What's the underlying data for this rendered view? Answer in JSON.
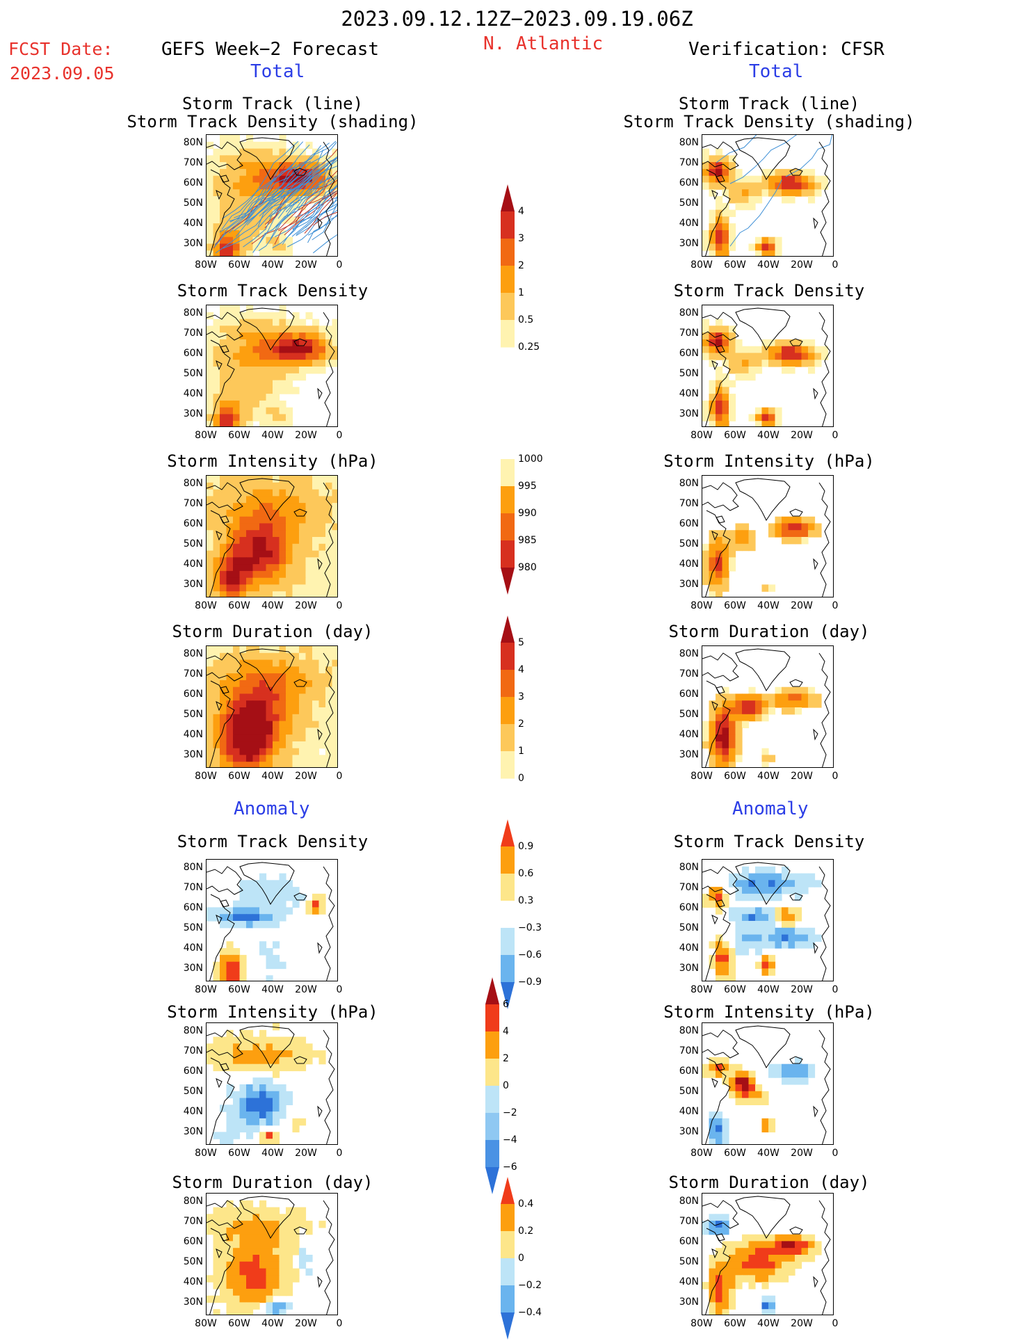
{
  "header": {
    "date_range": "2023.09.12.12Z−2023.09.19.06Z",
    "fcst_label": "FCST Date:",
    "fcst_date": "2023.09.05",
    "model": "GEFS Week−2 Forecast",
    "region": "N. Atlantic",
    "verification": "Verification: CFSR",
    "total_label": "Total",
    "anomaly_label": "Anomaly"
  },
  "axes": {
    "lat_ticks": [
      "80N",
      "70N",
      "60N",
      "50N",
      "40N",
      "30N"
    ],
    "lon_ticks": [
      "80W",
      "60W",
      "40W",
      "20W",
      "0"
    ]
  },
  "panels": {
    "track_title_1": "Storm Track (line)",
    "track_title_2": "Storm Track Density (shading)",
    "density": "Storm Track Density",
    "intensity": "Storm Intensity (hPa)",
    "duration": "Storm Duration (day)"
  },
  "colorbars": {
    "density_total": {
      "labels": [
        "4",
        "3",
        "2",
        "1",
        "0.5",
        "0.25"
      ],
      "colors": [
        "#a50f15",
        "#d7301f",
        "#f16913",
        "#fd9f0f",
        "#fdc85a",
        "#fff3b0"
      ]
    },
    "intensity_total": {
      "labels": [
        "1000",
        "995",
        "990",
        "985",
        "980"
      ],
      "colors": [
        "#fff3b0",
        "#fd9f0f",
        "#f16913",
        "#d7301f",
        "#a50f15"
      ]
    },
    "duration_total": {
      "labels": [
        "5",
        "4",
        "3",
        "2",
        "1",
        "0"
      ],
      "colors": [
        "#a50f15",
        "#d7301f",
        "#f16913",
        "#fd9f0f",
        "#fdc85a",
        "#fff3b0"
      ]
    },
    "density_anom": {
      "labels": [
        "0.9",
        "0.6",
        "0.3",
        "−0.3",
        "−0.6",
        "−0.9"
      ],
      "colors": [
        "#f03c1a",
        "#fd9f0f",
        "#fde68a",
        "#ffffff",
        "#bde4f7",
        "#6ab4ee",
        "#2d72d8"
      ]
    },
    "intensity_anom": {
      "labels": [
        "6",
        "4",
        "2",
        "0",
        "−2",
        "−4",
        "−6"
      ],
      "colors": [
        "#a50f15",
        "#f03c1a",
        "#fd9f0f",
        "#fde68a",
        "#bde4f7",
        "#8fc8f2",
        "#4a92e4",
        "#2d72d8"
      ]
    },
    "duration_anom": {
      "labels": [
        "0.4",
        "0.2",
        "0",
        "−0.2",
        "−0.4"
      ],
      "colors": [
        "#f03c1a",
        "#fd9f0f",
        "#fde68a",
        "#bde4f7",
        "#6ab4ee",
        "#2d72d8"
      ]
    }
  }
}
